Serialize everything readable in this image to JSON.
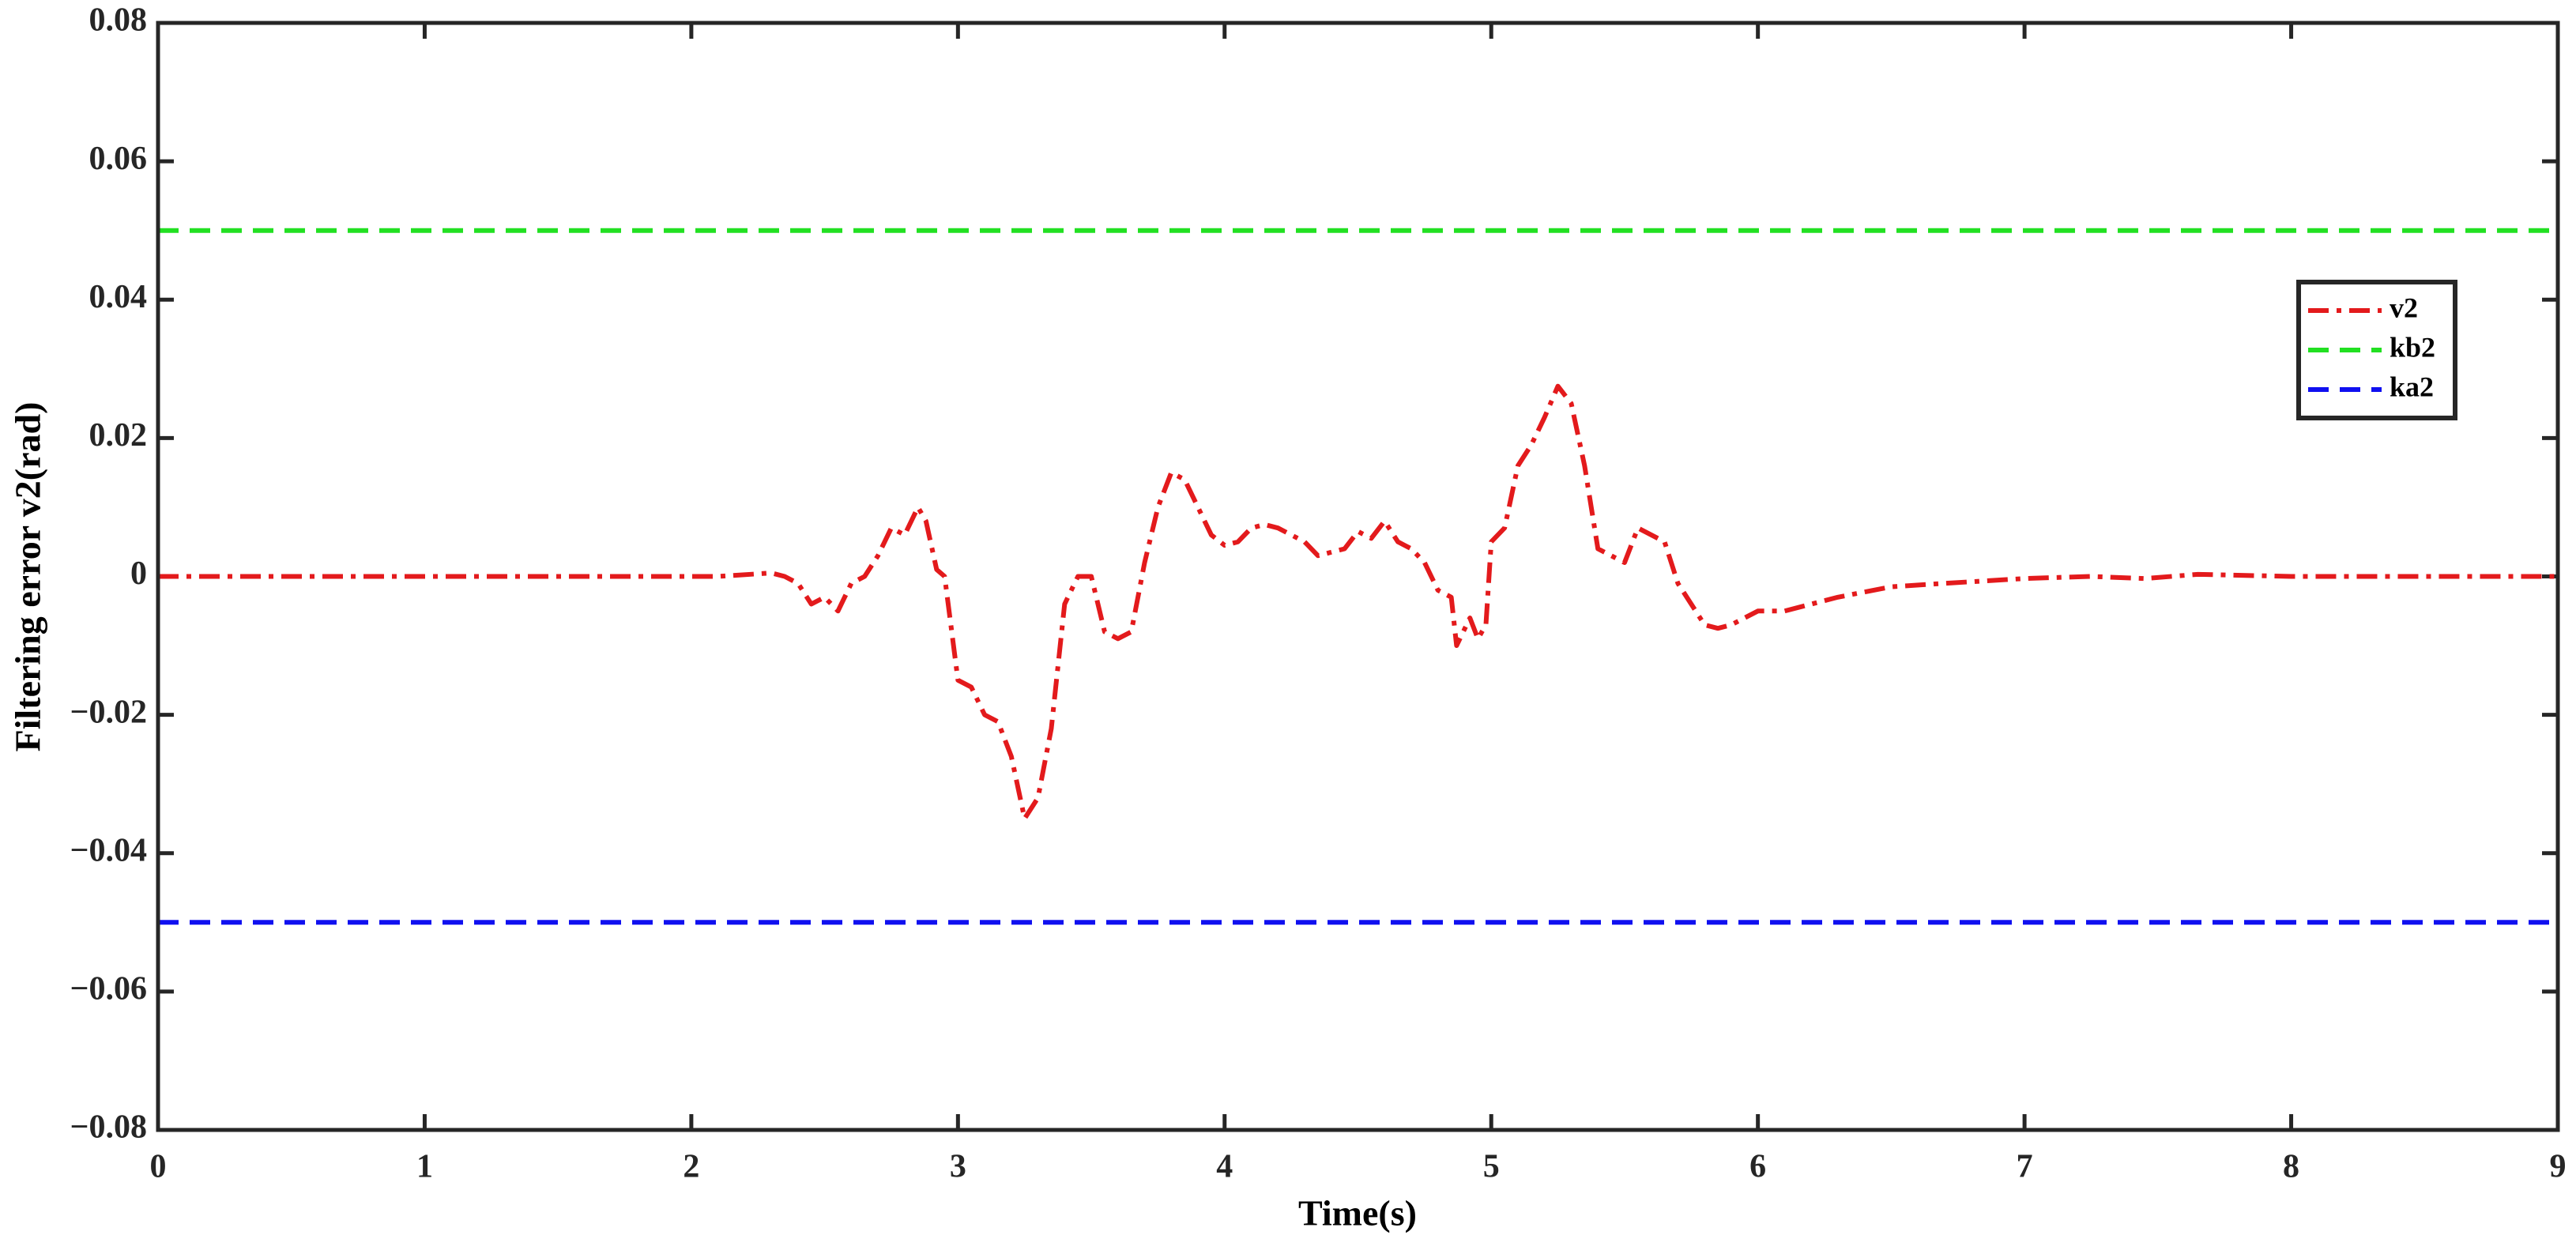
{
  "chart_data": {
    "type": "line",
    "xlabel": "Time(s)",
    "ylabel": "Filtering error v2(rad)",
    "xlim": [
      0,
      9
    ],
    "xticks": [
      0,
      1,
      2,
      3,
      4,
      5,
      6,
      7,
      8,
      9
    ],
    "ylim": [
      -0.08,
      0.08
    ],
    "yticks": [
      {
        "value": -0.08,
        "label": "−0.08"
      },
      {
        "value": -0.06,
        "label": "−0.06"
      },
      {
        "value": -0.04,
        "label": "−0.04"
      },
      {
        "value": -0.02,
        "label": "−0.02"
      },
      0,
      0.02,
      0.04,
      0.06,
      0.08
    ],
    "grid": false,
    "legend": "right",
    "series": [
      {
        "name": "v2",
        "color": "#e31a1c",
        "dash": "dash-dot",
        "x": [
          0,
          1,
          2.1,
          2.3,
          2.35,
          2.4,
          2.45,
          2.5,
          2.55,
          2.6,
          2.65,
          2.7,
          2.75,
          2.8,
          2.85,
          2.88,
          2.92,
          2.95,
          3.0,
          3.05,
          3.1,
          3.15,
          3.2,
          3.25,
          3.3,
          3.35,
          3.4,
          3.45,
          3.5,
          3.55,
          3.6,
          3.65,
          3.7,
          3.75,
          3.8,
          3.85,
          3.9,
          3.95,
          4.0,
          4.05,
          4.1,
          4.15,
          4.2,
          4.3,
          4.35,
          4.45,
          4.5,
          4.55,
          4.6,
          4.65,
          4.7,
          4.75,
          4.8,
          4.85,
          4.87,
          4.92,
          4.95,
          4.98,
          5.0,
          5.05,
          5.1,
          5.15,
          5.2,
          5.25,
          5.3,
          5.35,
          5.4,
          5.45,
          5.5,
          5.55,
          5.6,
          5.65,
          5.7,
          5.75,
          5.8,
          5.85,
          5.9,
          6.0,
          6.1,
          6.2,
          6.3,
          6.5,
          6.7,
          7.0,
          7.25,
          7.45,
          7.65,
          8.0,
          9.0
        ],
        "values": [
          0,
          0,
          0,
          0.0005,
          0,
          -0.001,
          -0.004,
          -0.003,
          -0.005,
          -0.001,
          0,
          0.003,
          0.007,
          0.006,
          0.01,
          0.008,
          0.001,
          0,
          -0.015,
          -0.016,
          -0.02,
          -0.021,
          -0.026,
          -0.035,
          -0.032,
          -0.022,
          -0.004,
          0,
          0,
          -0.008,
          -0.009,
          -0.008,
          0.002,
          0.01,
          0.015,
          0.014,
          0.01,
          0.006,
          0.0045,
          0.005,
          0.007,
          0.0075,
          0.007,
          0.005,
          0.003,
          0.004,
          0.0065,
          0.0055,
          0.008,
          0.005,
          0.004,
          0.002,
          -0.002,
          -0.003,
          -0.01,
          -0.006,
          -0.009,
          -0.007,
          0.005,
          0.007,
          0.016,
          0.019,
          0.023,
          0.0275,
          0.025,
          0.016,
          0.004,
          0.003,
          0.002,
          0.007,
          0.006,
          0.005,
          -0.001,
          -0.004,
          -0.007,
          -0.0075,
          -0.007,
          -0.005,
          -0.005,
          -0.004,
          -0.003,
          -0.0015,
          -0.001,
          -0.0003,
          0,
          -0.0003,
          0.0003,
          0,
          0
        ]
      },
      {
        "name": "kb2",
        "color": "#22e022",
        "dash": "dash",
        "x": [
          0,
          9
        ],
        "values": [
          0.05,
          0.05
        ]
      },
      {
        "name": "ka2",
        "color": "#1010f0",
        "dash": "dash",
        "x": [
          0,
          9
        ],
        "values": [
          -0.05,
          -0.05
        ]
      }
    ]
  }
}
